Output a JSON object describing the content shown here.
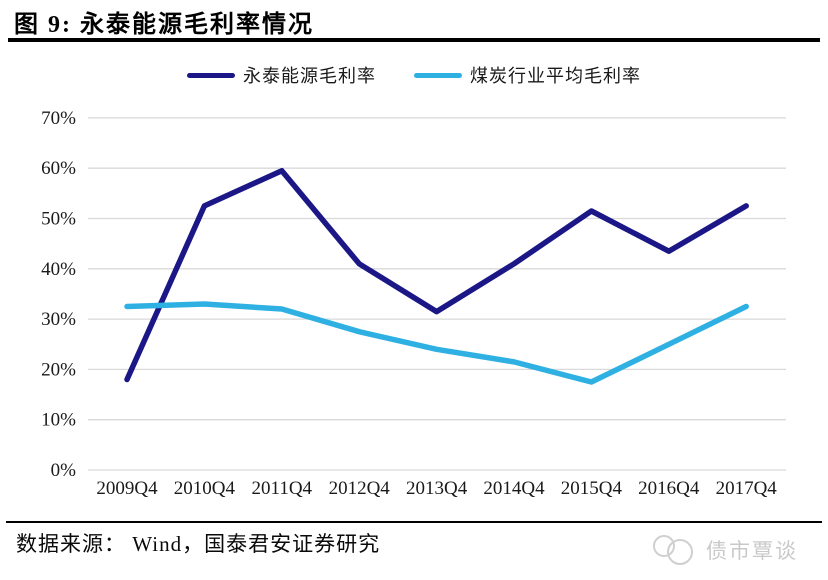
{
  "header": {
    "title": "图 9: 永泰能源毛利率情况"
  },
  "chart_data": {
    "type": "line",
    "title": "永泰能源毛利率情况",
    "categories": [
      "2009Q4",
      "2010Q4",
      "2011Q4",
      "2012Q4",
      "2013Q4",
      "2014Q4",
      "2015Q4",
      "2016Q4",
      "2017Q4"
    ],
    "series": [
      {
        "name": "永泰能源毛利率",
        "color": "#1b1786",
        "values": [
          18,
          52.5,
          59.5,
          41,
          31.5,
          41,
          51.5,
          43.5,
          52.5
        ]
      },
      {
        "name": "煤炭行业平均毛利率",
        "color": "#2fb0e2",
        "values": [
          32.5,
          33,
          32,
          27.5,
          24,
          21.5,
          17.5,
          25,
          32.5
        ]
      }
    ],
    "ylim": [
      0,
      70
    ],
    "y_tick_step": 10,
    "y_tick_labels": [
      "0%",
      "10%",
      "20%",
      "30%",
      "40%",
      "50%",
      "60%",
      "70%"
    ],
    "grid": "horizontal",
    "grid_color": "#d9d9d9",
    "tick_label_color": "#1a1a1a",
    "legend_position": "top-center",
    "unit": "percent"
  },
  "footer": {
    "source": "数据来源： Wind，国泰君安证券研究"
  },
  "watermark": {
    "text": "债市覃谈"
  }
}
